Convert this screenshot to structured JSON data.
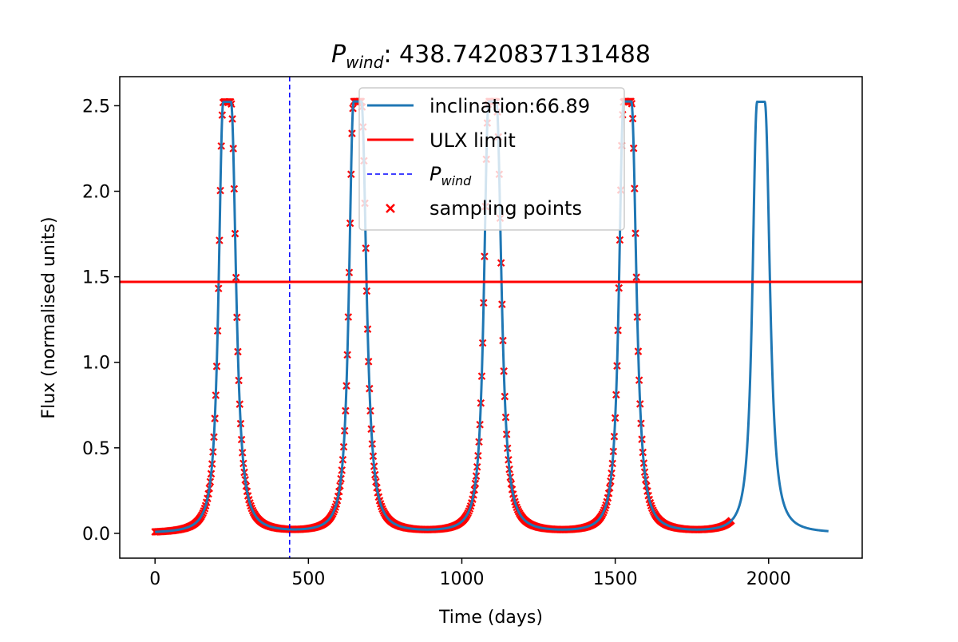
{
  "title": {
    "prefix": "P",
    "subscript": "wind",
    "suffix": ": 438.7420837131488"
  },
  "colors": {
    "curve": "#1f77b4",
    "ulx": "#ff0000",
    "pwind": "#0000ff",
    "points": "#ff0000"
  },
  "chart_data": {
    "type": "line",
    "xlabel": "Time (days)",
    "ylabel": "Flux (normalised units)",
    "xlim": [
      -115,
      2305
    ],
    "ylim": [
      -0.145,
      2.67
    ],
    "x_ticks": [
      0,
      500,
      1000,
      1500,
      2000
    ],
    "y_ticks": [
      0.0,
      0.5,
      1.0,
      1.5,
      2.0,
      2.5
    ],
    "x_tick_labels": [
      "0",
      "500",
      "1000",
      "1500",
      "2000"
    ],
    "y_tick_labels": [
      "0.0",
      "0.5",
      "1.0",
      "1.5",
      "2.0",
      "2.5"
    ],
    "grid": false,
    "legend_position": "top-center",
    "legend": {
      "curve": "inclination:66.89",
      "ulx": "ULX limit",
      "pwind_prefix": "P",
      "pwind_sub": "wind",
      "points": "sampling points"
    },
    "ulx_limit": 1.47,
    "p_wind": 438.7420837131488,
    "peak_centers": [
      235,
      660,
      1100,
      1540,
      1975
    ],
    "peak_max": 2.52,
    "curve_x_range": [
      0,
      2195
    ],
    "sampling_x_range": [
      0,
      1880
    ],
    "sampling_step_days": 3
  }
}
